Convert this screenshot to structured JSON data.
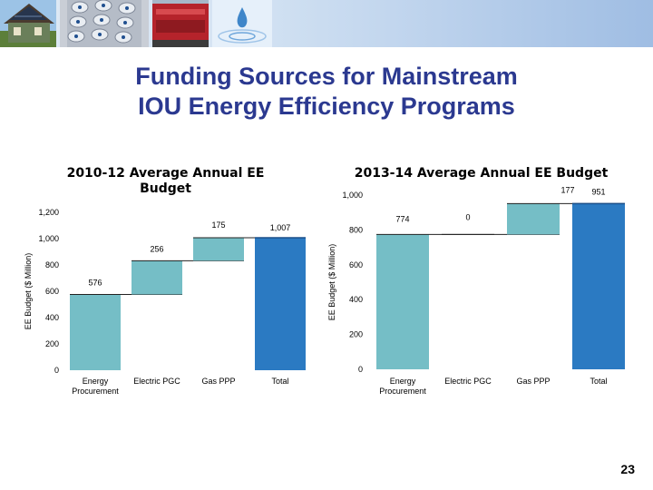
{
  "slide": {
    "title_line1": "Funding Sources for Mainstream",
    "title_line2": "IOU Energy Efficiency Programs",
    "page_number": "23",
    "banner_images": [
      "house-with-solar-panels",
      "phone-keypad",
      "red-train-car",
      "water-droplet"
    ]
  },
  "colors": {
    "title": "#2b3990",
    "step_bar": "#75bec6",
    "total_bar": "#2b7ac2"
  },
  "chart_data": [
    {
      "type": "waterfall",
      "title_line1": "2010-12 Average Annual EE",
      "title_line2": "Budget",
      "ylabel": "EE Budget ($ Million)",
      "ylim": [
        0,
        1200
      ],
      "yticks": [
        "0",
        "200",
        "400",
        "600",
        "800",
        "1,000",
        "1,200"
      ],
      "ytick_values": [
        0,
        200,
        400,
        600,
        800,
        1000,
        1200
      ],
      "categories": [
        "Energy Procurement",
        "Electric PGC",
        "Gas PPP",
        "Total"
      ],
      "steps": [
        {
          "name": "Energy Procurement",
          "value": 576,
          "label": "576",
          "kind": "step"
        },
        {
          "name": "Electric PGC",
          "value": 256,
          "label": "256",
          "kind": "step"
        },
        {
          "name": "Gas PPP",
          "value": 175,
          "label": "175",
          "kind": "step"
        },
        {
          "name": "Total",
          "value": 1007,
          "label": "1,007",
          "kind": "total"
        }
      ]
    },
    {
      "type": "waterfall",
      "title_line1": "2013-14 Average Annual EE Budget",
      "title_line2": "",
      "ylabel": "EE Budget ($ Million)",
      "ylim": [
        0,
        1000
      ],
      "yticks": [
        "0",
        "200",
        "400",
        "600",
        "800",
        "1,000"
      ],
      "ytick_values": [
        0,
        200,
        400,
        600,
        800,
        1000
      ],
      "categories": [
        "Energy Procurement",
        "Electric PGC",
        "Gas PPP",
        "Total"
      ],
      "steps": [
        {
          "name": "Energy Procurement",
          "value": 774,
          "label": "774",
          "kind": "step"
        },
        {
          "name": "Electric PGC",
          "value": 0,
          "label": "0",
          "kind": "step"
        },
        {
          "name": "Gas PPP",
          "value": 177,
          "label": "177",
          "kind": "step"
        },
        {
          "name": "Total",
          "value": 951,
          "label": "951",
          "kind": "total"
        }
      ]
    }
  ]
}
